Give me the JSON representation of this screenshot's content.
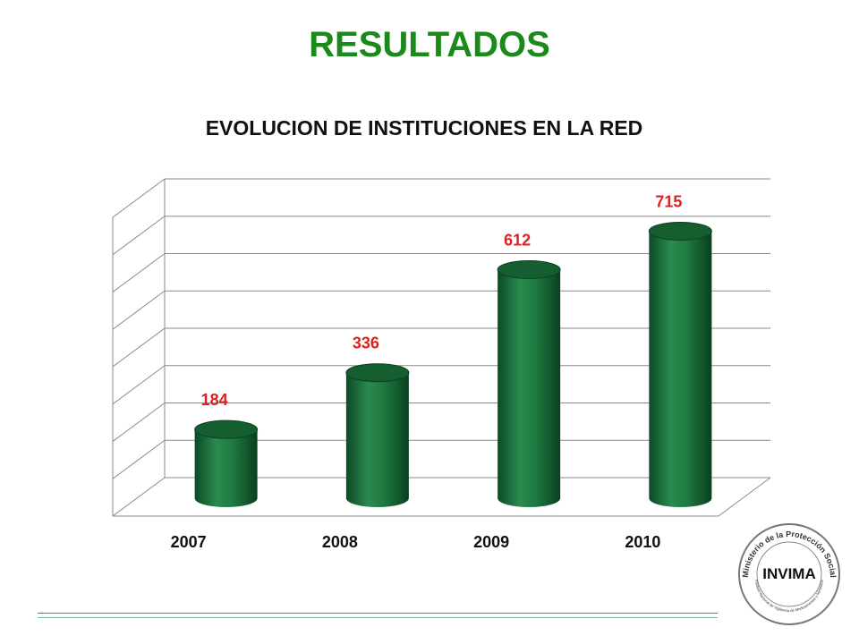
{
  "slide": {
    "title": "RESULTADOS",
    "title_color": "#1a8a1a"
  },
  "chart_data": {
    "type": "bar",
    "title": "EVOLUCION DE INSTITUCIONES EN LA RED",
    "categories": [
      "2007",
      "2008",
      "2009",
      "2010"
    ],
    "values": [
      184,
      336,
      612,
      715
    ],
    "ylim": [
      0,
      800
    ],
    "grid": true,
    "style": "3d-cylinder",
    "bar_color": "#1f7a40",
    "label_color": "#e02020"
  },
  "logo": {
    "ring_text": "Ministerio de la Protección Social",
    "inner_text": "Instituto Nacional de Vigilancia de Medicamentos y Alimentos",
    "brand": "INVIMA"
  }
}
